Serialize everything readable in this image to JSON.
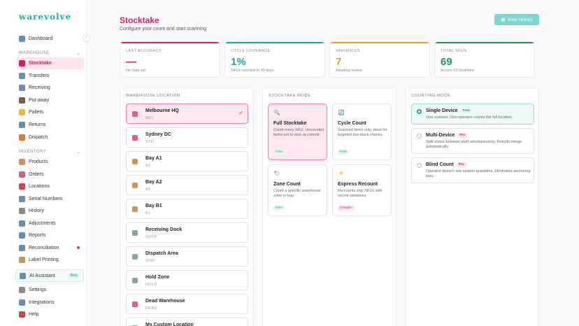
{
  "app": {
    "logo": "warevolve"
  },
  "sidebar": {
    "top_items": [
      {
        "label": "Dashboard",
        "icon": "dashboard-icon",
        "color": "#6b8fa8"
      }
    ],
    "warehouse_section": "WAREHOUSE",
    "warehouse_items": [
      {
        "label": "Stocktake",
        "icon": "clipboard-icon",
        "color": "#d81b60",
        "active": true
      },
      {
        "label": "Transfers",
        "icon": "transfer-icon",
        "color": "#6b8fa8"
      },
      {
        "label": "Receiving",
        "icon": "receiving-icon",
        "color": "#6b8fa8"
      },
      {
        "label": "Put-away",
        "icon": "putaway-icon",
        "color": "#8a5a3c"
      },
      {
        "label": "Pallets",
        "icon": "pallet-icon",
        "color": "#f0b24a"
      },
      {
        "label": "Returns",
        "icon": "returns-icon",
        "color": "#6b8fa8"
      },
      {
        "label": "Dispatch",
        "icon": "truck-icon",
        "color": "#e07a2e"
      }
    ],
    "inventory_section": "INVENTORY",
    "inventory_items": [
      {
        "label": "Products",
        "icon": "box-icon",
        "color": "#c9975a"
      },
      {
        "label": "Orders",
        "icon": "orders-icon",
        "color": "#e05a7a"
      },
      {
        "label": "Locations",
        "icon": "pin-icon",
        "color": "#e53950"
      },
      {
        "label": "Serial Numbers",
        "icon": "serial-icon",
        "color": "#6b8fa8"
      },
      {
        "label": "History",
        "icon": "history-icon",
        "color": "#8a8a8a"
      },
      {
        "label": "Adjustments",
        "icon": "adjust-icon",
        "color": "#6b8fa8"
      },
      {
        "label": "Reports",
        "icon": "reports-icon",
        "color": "#6b8fa8"
      },
      {
        "label": "Reconciliation",
        "icon": "reconcile-icon",
        "color": "#6b8fa8",
        "dot": true
      },
      {
        "label": "Label Printing",
        "icon": "label-icon",
        "color": "#c9975a"
      }
    ],
    "ai": {
      "label": "AI Assistant",
      "badge": "Beta"
    },
    "bottom_items": [
      {
        "label": "Settings",
        "icon": "gear-icon",
        "color": "#8a8a8a"
      },
      {
        "label": "Integrations",
        "icon": "link-icon",
        "color": "#6b8fa8"
      },
      {
        "label": "Help",
        "icon": "help-icon",
        "color": "#e53950"
      }
    ]
  },
  "header": {
    "title": "Stocktake",
    "subtitle": "Configure your count and start scanning",
    "view_history": "View History"
  },
  "stats": [
    {
      "label": "LAST ACCURACY",
      "value": "—",
      "sub": "No data yet",
      "color": "#d81b60"
    },
    {
      "label": "CYCLE COVERAGE",
      "value": "1%",
      "sub": "SKUs counted in 30 days",
      "color": "#1aaa97"
    },
    {
      "label": "VARIANCES",
      "value": "7",
      "sub": "Awaiting review",
      "color": "#f0a020"
    },
    {
      "label": "TOTAL SKUS",
      "value": "69",
      "sub": "Across 13 locations",
      "color": "#1a9a56"
    }
  ],
  "locations_panel": {
    "title": "WAREHOUSE LOCATION",
    "items": [
      {
        "name": "Melbourne HQ",
        "code": "MEL",
        "selected": true,
        "color": "#e06080"
      },
      {
        "name": "Sydney DC",
        "code": "SYD",
        "color": "#e06080"
      },
      {
        "name": "Bay A1",
        "code": "A1",
        "color": "#c9975a"
      },
      {
        "name": "Bay A2",
        "code": "A2",
        "color": "#c9975a"
      },
      {
        "name": "Bay B1",
        "code": "B1",
        "color": "#c9975a"
      },
      {
        "name": "Receiving Dock",
        "code": "DOCK",
        "color": "#8aa4a0"
      },
      {
        "name": "Dispatch Area",
        "code": "DISP",
        "color": "#8aa4a0"
      },
      {
        "name": "Hold Zone",
        "code": "HOLD",
        "color": "#8aa4a0"
      },
      {
        "name": "Dead Warehouse",
        "code": "DEAD",
        "color": "#e06080"
      },
      {
        "name": "My Custom Location",
        "code": "",
        "color": "#8aa4a0"
      }
    ]
  },
  "modes_panel": {
    "title": "STOCKTAKE MODE",
    "items": [
      {
        "name": "Full Stocktake",
        "desc": "Count every SKU. Uncounted items set to zero at commit.",
        "tag": "Free",
        "tag_type": "free",
        "icon": "magnifier-icon",
        "glyph": "🔍",
        "selected": true
      },
      {
        "name": "Cycle Count",
        "desc": "Scanned items only. Ideal for targeted low-stock checks.",
        "tag": "Free",
        "tag_type": "free",
        "icon": "cycle-icon",
        "glyph": "🔄"
      },
      {
        "name": "Zone Count",
        "desc": "Count a specific warehouse zone or bay.",
        "tag": "Free",
        "tag_type": "free",
        "icon": "zone-icon",
        "glyph": "🏷"
      },
      {
        "name": "Express Recount",
        "desc": "Re-counts only SKUs with recent variances.",
        "tag": "Growth+",
        "tag_type": "growth",
        "icon": "bolt-icon",
        "glyph": "⚡"
      }
    ]
  },
  "counting_panel": {
    "title": "COUNTING MODE",
    "items": [
      {
        "name": "Single Device",
        "tag": "Free",
        "tag_type": "free-inline",
        "desc": "One scanner. One operator counts the full location.",
        "selected": true
      },
      {
        "name": "Multi-Device",
        "tag": "Pro",
        "tag_type": "pro",
        "desc": "Split zones between staff simultaneously. Results merge automatically."
      },
      {
        "name": "Blind Count",
        "tag": "Pro",
        "tag_type": "pro",
        "desc": "Operator doesn't see system quantities. Eliminates anchoring bias."
      }
    ]
  }
}
